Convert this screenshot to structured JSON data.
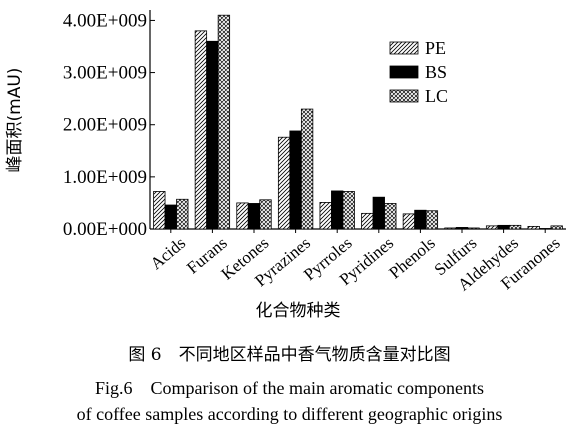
{
  "chart_data": {
    "type": "bar",
    "xlabel": "化合物种类",
    "ylabel": "峰面积(mAU)",
    "ylim": [
      0,
      4200000000
    ],
    "yticks": [
      0,
      1000000000,
      2000000000,
      3000000000,
      4000000000
    ],
    "ytick_labels": [
      "0.00E+000",
      "1.00E+009",
      "2.00E+009",
      "3.00E+009",
      "4.00E+009"
    ],
    "categories": [
      "Acids",
      "Furans",
      "Ketones",
      "Pyrazines",
      "Pyrroles",
      "Pyridines",
      "Phenols",
      "Sulfurs",
      "Aldehydes",
      "Furanones"
    ],
    "series": [
      {
        "name": "PE",
        "pattern": "diagonal-hatch",
        "values": [
          720000000,
          3800000000,
          500000000,
          1760000000,
          510000000,
          300000000,
          290000000,
          20000000,
          60000000,
          50000000
        ]
      },
      {
        "name": "BS",
        "pattern": "solid-black",
        "values": [
          460000000,
          3600000000,
          490000000,
          1880000000,
          730000000,
          610000000,
          360000000,
          30000000,
          70000000,
          10000000
        ]
      },
      {
        "name": "LC",
        "pattern": "crosshatch",
        "values": [
          570000000,
          4100000000,
          560000000,
          2300000000,
          720000000,
          490000000,
          350000000,
          20000000,
          70000000,
          60000000
        ]
      }
    ],
    "legend": {
      "placement": "top-right"
    },
    "grid": false
  },
  "caption": {
    "cn": "图 6　不同地区样品中香气物质含量对比图",
    "en_line1": "Fig.6　Comparison of the main aromatic components",
    "en_line2": "of coffee samples according to different geographic origins"
  },
  "colors": {
    "axis": "#000000",
    "bar_fill_solid": "#000000",
    "bar_fill_pattern": "#ffffff"
  }
}
